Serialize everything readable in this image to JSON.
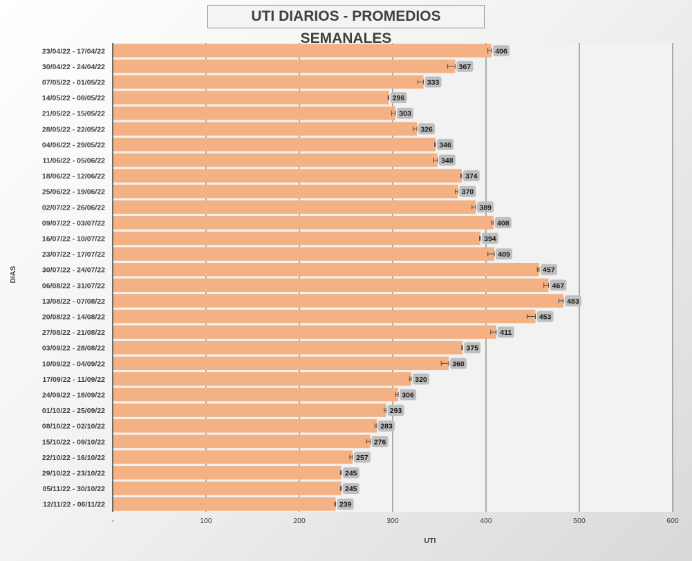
{
  "colors": {
    "bar": "#f4b183",
    "plot_bg": "#f2f2f2",
    "label_bg": "#bfbfbf",
    "gridline": "#404040"
  },
  "chart_data": {
    "type": "bar",
    "orientation": "horizontal",
    "title": "UTI DIARIOS - PROMEDIOS SEMANALES",
    "xlabel": "UTI",
    "ylabel": "DIAS",
    "xlim": [
      0,
      600
    ],
    "xticks": [
      "-",
      "100",
      "200",
      "300",
      "400",
      "500",
      "600"
    ],
    "gridlines": true,
    "error_bars": true,
    "data_labels": true,
    "categories": [
      "23/04/22 - 17/04/22",
      "30/04/22 - 24/04/22",
      "07/05/22 - 01/05/22",
      "14/05/22 - 08/05/22",
      "21/05/22 - 15/05/22",
      "28/05/22 - 22/05/22",
      "04/06/22 - 29/05/22",
      "11/06/22 - 05/06/22",
      "18/06/22 - 12/06/22",
      "25/06/22 - 19/06/22",
      "02/07/22 - 26/06/22",
      "09/07/22 - 03/07/22",
      "16/07/22 - 10/07/22",
      "23/07/22 - 17/07/22",
      "30/07/22 - 24/07/22",
      "06/08/22 - 31/07/22",
      "13/08/22 - 07/08/22",
      "20/08/22 - 14/08/22",
      "27/08/22 - 21/08/22",
      "03/09/22 - 28/08/22",
      "10/09/22 - 04/09/22",
      "17/09/22 - 11/09/22",
      "24/09/22 - 18/09/22",
      "01/10/22 - 25/09/22",
      "08/10/22 - 02/10/22",
      "15/10/22 - 09/10/22",
      "22/10/22 - 16/10/22",
      "29/10/22 - 23/10/22",
      "05/11/22 - 30/10/22",
      "12/11/22 - 06/11/22"
    ],
    "values": [
      406,
      367,
      333,
      296,
      303,
      326,
      346,
      348,
      374,
      370,
      389,
      408,
      394,
      409,
      457,
      467,
      483,
      453,
      411,
      375,
      360,
      320,
      306,
      293,
      283,
      276,
      257,
      245,
      245,
      239
    ],
    "labels": [
      "406",
      "367",
      "333",
      "296",
      "303",
      "326",
      "346",
      "348",
      "374",
      "370",
      "389",
      "408",
      "394",
      "409",
      "457",
      "467",
      "483",
      "453",
      "411",
      "375",
      "360",
      "320",
      "306",
      "293",
      "283",
      "276",
      "257",
      "245",
      "245",
      "239"
    ],
    "error_low": [
      402,
      359,
      327,
      295,
      299,
      322,
      345,
      344,
      373,
      367,
      385,
      406,
      393,
      402,
      455,
      462,
      478,
      444,
      405,
      374,
      352,
      318,
      303,
      291,
      281,
      272,
      254,
      244,
      244,
      238
    ],
    "error_high": [
      406,
      367,
      333,
      296,
      303,
      326,
      346,
      348,
      374,
      370,
      389,
      408,
      394,
      409,
      457,
      467,
      483,
      453,
      411,
      375,
      360,
      320,
      306,
      293,
      283,
      276,
      257,
      245,
      245,
      239
    ]
  }
}
